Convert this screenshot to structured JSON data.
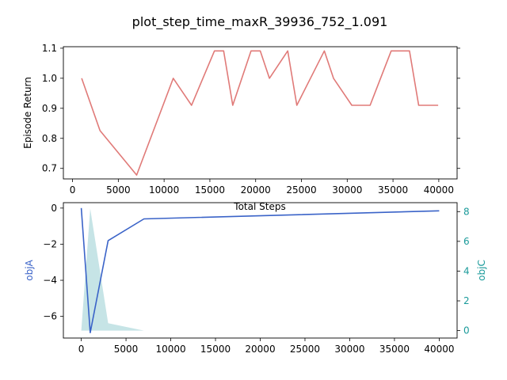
{
  "figure": {
    "title": "plot_step_time_maxR_39936_752_1.091"
  },
  "colors": {
    "episode_return": "#e07a78",
    "objA": "#3a63c8",
    "objC": "#c6e4e6",
    "objC_label": "#1a9a9a",
    "objA_label": "#3a63c8"
  },
  "chart_data": [
    {
      "type": "line",
      "xlabel": "Total Steps",
      "ylabel": "Episode Return",
      "xlim": [
        -1000,
        42000
      ],
      "ylim": [
        0.665,
        1.105
      ],
      "xticks": [
        0,
        5000,
        10000,
        15000,
        20000,
        25000,
        30000,
        35000,
        40000
      ],
      "yticks": [
        0.7,
        0.8,
        0.9,
        1.0,
        1.1
      ],
      "grid": false,
      "series": [
        {
          "x": [
            1000,
            3000,
            7000,
            11000,
            13000,
            15500,
            16500,
            17500,
            19500,
            20500,
            21500,
            23500,
            24500,
            27500,
            28500,
            30500,
            32500,
            34800,
            35800,
            36800,
            37800,
            39936
          ],
          "y": [
            1.0,
            0.826,
            0.678,
            1.0,
            0.91,
            1.091,
            1.091,
            0.91,
            1.091,
            1.091,
            1.0,
            1.091,
            0.91,
            1.091,
            1.0,
            0.91,
            0.91,
            1.091,
            1.091,
            1.091,
            0.91,
            0.91
          ]
        }
      ]
    },
    {
      "type": "line",
      "xlabel": "",
      "ylabel": "objA",
      "y2label": "objC",
      "xlim": [
        -2000,
        42000
      ],
      "ylim": [
        -7.2,
        0.3
      ],
      "y2lim": [
        -0.5,
        8.6
      ],
      "xticks": [
        0,
        5000,
        10000,
        15000,
        20000,
        25000,
        30000,
        35000,
        40000
      ],
      "yticks": [
        0,
        -2,
        -4,
        -6
      ],
      "y2ticks": [
        0,
        2,
        4,
        6,
        8
      ],
      "grid": false,
      "series": [
        {
          "name": "objA",
          "type": "line",
          "axis": "left",
          "x": [
            0,
            1000,
            3000,
            7000,
            40000
          ],
          "y": [
            0.0,
            -6.9,
            -1.8,
            -0.6,
            -0.15
          ]
        },
        {
          "name": "objC",
          "type": "area",
          "axis": "right",
          "x": [
            0,
            1000,
            3000,
            7000
          ],
          "y": [
            0.0,
            8.2,
            0.5,
            0.0
          ]
        }
      ]
    }
  ]
}
